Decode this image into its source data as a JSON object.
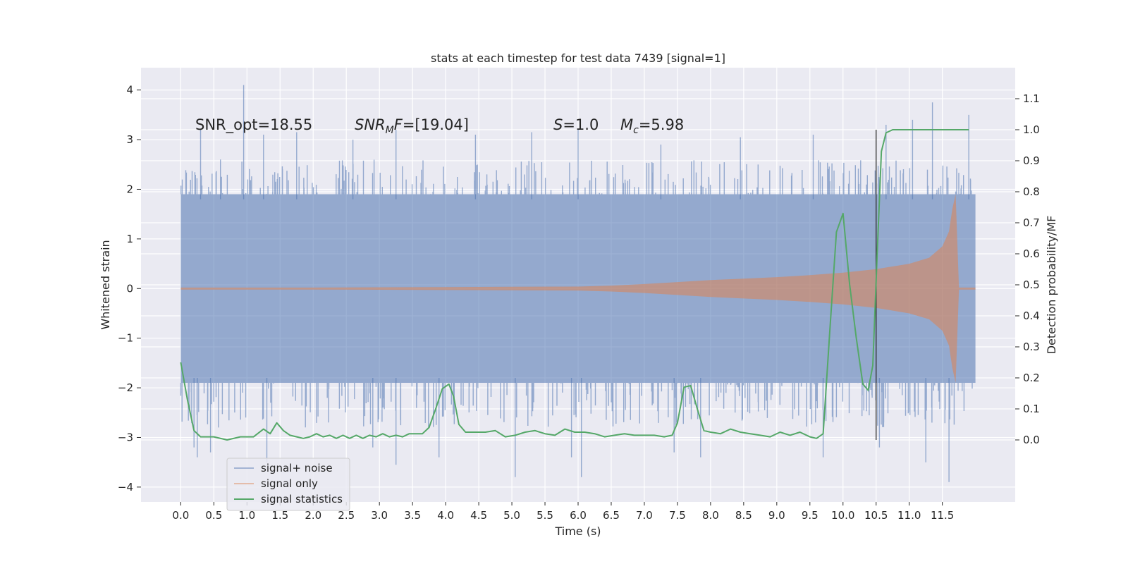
{
  "chart_data": {
    "type": "line",
    "title": "stats at each timestep for test data 7439 [signal=1]",
    "xlabel": "Time (s)",
    "ylabel": "Whitened strain",
    "y2label": "Detection probability/MF",
    "xlim": [
      -0.6,
      12.6
    ],
    "ylim": [
      -4.3,
      4.45
    ],
    "y2lim": [
      -0.2,
      1.2
    ],
    "grid": true,
    "legend_position": "lower-left",
    "x_ticks": [
      "0.0",
      "0.5",
      "1.0",
      "1.5",
      "2.0",
      "2.5",
      "3.0",
      "3.5",
      "4.0",
      "4.5",
      "5.0",
      "5.5",
      "6.0",
      "6.5",
      "7.0",
      "7.5",
      "8.0",
      "8.5",
      "9.0",
      "9.5",
      "10.0",
      "10.5",
      "11.0",
      "11.5"
    ],
    "y_ticks": [
      "4",
      "3",
      "2",
      "1",
      "0",
      "−1",
      "−2",
      "−3",
      "−4"
    ],
    "y2_ticks": [
      "1.1",
      "1.0",
      "0.9",
      "0.8",
      "0.7",
      "0.6",
      "0.5",
      "0.4",
      "0.3",
      "0.2",
      "0.1",
      "0.0"
    ],
    "annotations": {
      "snr_opt": "SNR_opt=18.55",
      "snr_mf_base": "SNR",
      "snr_mf_sub": "M",
      "snr_mf_italic": "F",
      "snr_mf_rest": "=[19.04]",
      "s_sym": "S",
      "s_val": "=1.0",
      "mc_sym": "M",
      "mc_sub": "c",
      "mc_val": "=5.98"
    },
    "vertical_marker_x": 10.5,
    "series": [
      {
        "name": "signal+ noise",
        "axis": "left",
        "color": "#4c72b0",
        "envelope_x": [
          0.0,
          1.0,
          2.0,
          3.0,
          4.0,
          5.0,
          6.0,
          7.0,
          8.0,
          9.0,
          10.0,
          11.0,
          12.0
        ],
        "envelope_core": [
          1.9,
          1.9,
          1.9,
          1.9,
          1.9,
          1.9,
          1.9,
          1.9,
          1.9,
          1.9,
          1.9,
          1.9,
          1.9
        ],
        "spikes_up": [
          [
            0.3,
            3.2
          ],
          [
            0.6,
            2.6
          ],
          [
            0.95,
            4.1
          ],
          [
            1.25,
            3.1
          ],
          [
            1.75,
            3.15
          ],
          [
            2.6,
            3.0
          ],
          [
            3.25,
            3.2
          ],
          [
            4.45,
            3.1
          ],
          [
            5.3,
            3.15
          ],
          [
            6.0,
            3.2
          ],
          [
            7.25,
            2.9
          ],
          [
            8.45,
            3.05
          ],
          [
            9.55,
            3.1
          ],
          [
            10.65,
            3.3
          ],
          [
            11.05,
            3.4
          ],
          [
            11.35,
            3.75
          ],
          [
            11.9,
            3.5
          ]
        ],
        "spikes_down": [
          [
            0.2,
            -3.2
          ],
          [
            0.25,
            -3.4
          ],
          [
            0.45,
            -3.3
          ],
          [
            1.3,
            -3.5
          ],
          [
            2.9,
            -3.2
          ],
          [
            3.25,
            -3.55
          ],
          [
            3.9,
            -3.4
          ],
          [
            5.05,
            -3.8
          ],
          [
            5.9,
            -3.4
          ],
          [
            6.05,
            -3.8
          ],
          [
            7.45,
            -3.3
          ],
          [
            7.85,
            -3.4
          ],
          [
            9.7,
            -3.4
          ],
          [
            10.55,
            -3.2
          ],
          [
            11.25,
            -3.5
          ],
          [
            11.6,
            -3.9
          ]
        ]
      },
      {
        "name": "signal only",
        "axis": "left",
        "color": "#dd8452",
        "envelope_x": [
          0.0,
          1.0,
          2.0,
          3.0,
          4.0,
          5.0,
          6.0,
          6.5,
          7.0,
          7.5,
          8.0,
          8.5,
          9.0,
          9.5,
          10.0,
          10.5,
          11.0,
          11.3,
          11.5,
          11.6,
          11.65,
          11.7,
          11.75,
          12.0
        ],
        "envelope_amp": [
          0.02,
          0.02,
          0.02,
          0.025,
          0.03,
          0.035,
          0.04,
          0.06,
          0.09,
          0.13,
          0.17,
          0.2,
          0.23,
          0.27,
          0.32,
          0.39,
          0.5,
          0.62,
          0.85,
          1.15,
          1.6,
          1.9,
          0.02,
          0.02
        ]
      },
      {
        "name": "signal statistics",
        "axis": "right",
        "color": "#55a868",
        "x": [
          0.0,
          0.1,
          0.2,
          0.3,
          0.5,
          0.7,
          0.9,
          1.1,
          1.25,
          1.35,
          1.45,
          1.55,
          1.65,
          1.75,
          1.85,
          1.95,
          2.05,
          2.15,
          2.25,
          2.35,
          2.45,
          2.55,
          2.65,
          2.75,
          2.85,
          2.95,
          3.05,
          3.15,
          3.25,
          3.35,
          3.45,
          3.55,
          3.65,
          3.75,
          3.85,
          3.95,
          4.05,
          4.12,
          4.2,
          4.3,
          4.45,
          4.6,
          4.75,
          4.9,
          5.05,
          5.2,
          5.35,
          5.5,
          5.65,
          5.8,
          5.95,
          6.1,
          6.25,
          6.4,
          6.55,
          6.7,
          6.85,
          7.0,
          7.15,
          7.3,
          7.42,
          7.5,
          7.6,
          7.7,
          7.8,
          7.9,
          8.0,
          8.15,
          8.3,
          8.45,
          8.6,
          8.75,
          8.9,
          9.05,
          9.2,
          9.35,
          9.5,
          9.6,
          9.7,
          9.8,
          9.9,
          10.0,
          10.1,
          10.2,
          10.3,
          10.38,
          10.45,
          10.52,
          10.58,
          10.65,
          10.75,
          10.9,
          11.2,
          11.6,
          11.9
        ],
        "y": [
          0.25,
          0.13,
          0.03,
          0.01,
          0.01,
          0.0,
          0.01,
          0.01,
          0.035,
          0.02,
          0.055,
          0.03,
          0.015,
          0.01,
          0.005,
          0.01,
          0.02,
          0.01,
          0.015,
          0.005,
          0.015,
          0.005,
          0.015,
          0.005,
          0.015,
          0.01,
          0.02,
          0.01,
          0.015,
          0.01,
          0.02,
          0.02,
          0.02,
          0.04,
          0.1,
          0.165,
          0.18,
          0.14,
          0.05,
          0.025,
          0.025,
          0.025,
          0.03,
          0.01,
          0.015,
          0.025,
          0.03,
          0.02,
          0.015,
          0.035,
          0.025,
          0.025,
          0.02,
          0.01,
          0.015,
          0.02,
          0.015,
          0.015,
          0.015,
          0.01,
          0.015,
          0.055,
          0.17,
          0.175,
          0.1,
          0.03,
          0.025,
          0.02,
          0.035,
          0.025,
          0.02,
          0.015,
          0.01,
          0.025,
          0.015,
          0.025,
          0.01,
          0.005,
          0.02,
          0.35,
          0.67,
          0.73,
          0.5,
          0.33,
          0.18,
          0.16,
          0.24,
          0.62,
          0.93,
          0.99,
          1.0,
          1.0,
          1.0,
          1.0,
          1.0
        ]
      }
    ]
  }
}
